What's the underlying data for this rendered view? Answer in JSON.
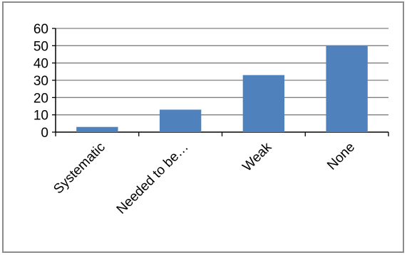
{
  "chart_data": {
    "type": "bar",
    "categories": [
      "Systematic",
      "Needed to be…",
      "Weak",
      "None"
    ],
    "values": [
      3,
      13,
      33,
      50
    ],
    "ylim": [
      0,
      60
    ],
    "yticks": [
      0,
      10,
      20,
      30,
      40,
      50,
      60
    ],
    "grid": true,
    "legend": "none",
    "title": "",
    "xlabel": "",
    "ylabel": "",
    "bar_color": "#4f81bd",
    "grid_color": "#7f7f7f",
    "frame_color": "#8c8c8c"
  }
}
